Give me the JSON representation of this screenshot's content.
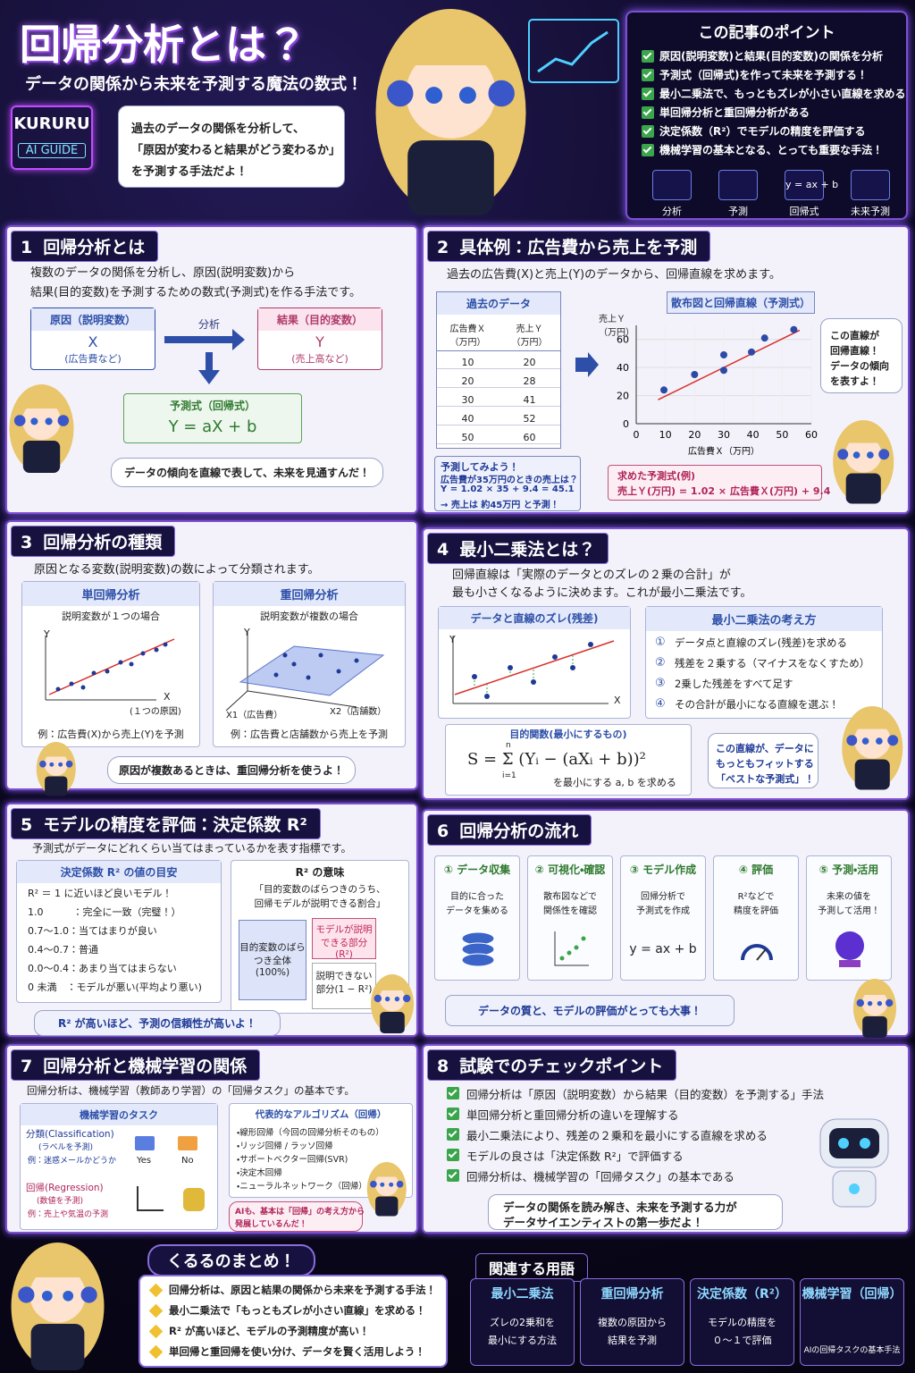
{
  "header": {
    "title": "回帰分析とは？",
    "subtitle": "データの関係から未来を予測する魔法の数式！",
    "badge": [
      "KURURU",
      "AI GUIDE"
    ],
    "speech": [
      "過去のデータの関係を分析して、",
      "「原因が変わると結果がどう変わるか」",
      "を予測する手法だよ！"
    ]
  },
  "points": {
    "title": "この記事のポイント",
    "items": [
      "原因(説明変数)と結果(目的変数)の関係を分析",
      "予測式（回帰式)を作って未来を予測する！",
      "最小二乗法で、もっともズレが小さい直線を求める",
      "単回帰分析と重回帰分析がある",
      "決定係数（R²）でモデルの精度を評価する",
      "機械学習の基本となる、とっても重要な手法！"
    ],
    "icons": [
      "分析",
      "予測",
      "回帰式",
      "未来予測"
    ],
    "formula": "y = ax + b"
  },
  "s1": {
    "num": "1",
    "title": "回帰分析とは",
    "text": [
      "複数のデータの関係を分析し、原因(説明変数)から",
      "結果(目的変数)を予測するための数式(予測式)を作る手法です。"
    ],
    "cause": {
      "title": "原因（説明変数）",
      "var": "X",
      "note": "(広告費など)"
    },
    "arrow": "分析",
    "effect": {
      "title": "結果（目的変数）",
      "var": "Y",
      "note": "(売上高など)"
    },
    "formula": {
      "title": "予測式（回帰式）",
      "text": "Y = aX + b"
    },
    "bubble": "データの傾向を直線で表して、未来を見通すんだ！"
  },
  "s2": {
    "num": "2",
    "title": "具体例：広告費から売上を予測",
    "text": "過去の広告費(X)と売上(Y)のデータから、回帰直線を求めます。",
    "table": {
      "title": "過去のデータ",
      "headers": [
        "広告費Ｘ（万円）",
        "売上Ｙ（万円）"
      ],
      "rows": [
        [
          10,
          20
        ],
        [
          20,
          28
        ],
        [
          30,
          41
        ],
        [
          40,
          52
        ],
        [
          50,
          60
        ]
      ]
    },
    "chart": {
      "type": "scatter",
      "title": "散布図と回帰直線（予測式）",
      "ylabel": "売上Ｙ（万円）",
      "xlabel": "広告費Ｘ（万円）",
      "x": [
        9.5,
        20,
        30,
        30,
        39.5,
        44,
        54
      ],
      "y": [
        24,
        35,
        38,
        49,
        51,
        61,
        67
      ],
      "color": "#2b4aa6",
      "line_color": "#d9302b",
      "fit": {
        "slope": 1.02,
        "intercept": 9.4
      },
      "xlim": [
        0,
        60
      ],
      "xticks": [
        0,
        10,
        20,
        30,
        40,
        50,
        60
      ],
      "ylim": [
        0,
        70
      ],
      "yticks": [
        0,
        20,
        40,
        60
      ],
      "grid": true
    },
    "bubble": [
      "この直線が",
      "回帰直線！",
      "データの傾向",
      "を表すよ！"
    ],
    "predict": [
      "予測してみよう！",
      "広告費が35万円のときの売上は？",
      "Y = 1.02 × 35 + 9.4 = 45.1",
      "→ 売上は 約45万円 と予測！"
    ],
    "result": [
      "求めた予測式(例)",
      "売上Ｙ(万円) = 1.02 × 広告費Ｘ(万円) + 9.4"
    ]
  },
  "s3": {
    "num": "3",
    "title": "回帰分析の種類",
    "text": "原因となる変数(説明変数)の数によって分類されます。",
    "single": {
      "title": "単回帰分析",
      "sub": "説明変数が１つの場合",
      "y": "Y",
      "x": "X",
      "xnote": "(１つの原因)",
      "example": "例：広告費(X)から売上(Y)を予測"
    },
    "multi": {
      "title": "重回帰分析",
      "sub": "説明変数が複数の場合",
      "y": "Y",
      "x1": "X1（広告費）",
      "x2": "X2（店舗数）",
      "example": "例：広告費と店舗数から売上を予測"
    },
    "bubble": "原因が複数あるときは、重回帰分析を使うよ！"
  },
  "s4": {
    "num": "4",
    "title": "最小二乗法とは？",
    "text": [
      "回帰直線は「実際のデータとのズレの２乗の合計」が",
      "最も小さくなるように決めます。これが最小二乗法です。"
    ],
    "chart_title": "データと直線のズレ(残差)",
    "y": "Y",
    "x": "X",
    "idea": {
      "title": "最小二乗法の考え方",
      "markers": [
        "①",
        "②",
        "③",
        "④"
      ],
      "steps": [
        "データ点と直線のズレ(残差)を求める",
        "残差を２乗する（マイナスをなくすため）",
        "2乗した残差をすべて足す",
        "その合計が最小になる直線を選ぶ！"
      ]
    },
    "objective": {
      "title": "目的関数(最小にするもの)",
      "formula": "S = Σ (Yᵢ − (aXᵢ + b))²",
      "top": "n",
      "bottom": "i=1",
      "note": "を最小にする a, b を求める"
    },
    "bubble": [
      "この直線が、データに",
      "もっともフィットする",
      "「ベストな予測式」！"
    ]
  },
  "s5": {
    "num": "5",
    "title": "モデルの精度を評価：決定係数 R²",
    "text": "予測式がデータにどれくらい当てはまっているかを表す指標です。",
    "guide": {
      "title": "決定係数 R² の値の目安",
      "rows": [
        "R² ＝ 1 に近いほど良いモデル！",
        "1.0　　　：完全に一致（完璧！）",
        "0.7〜1.0：当てはまりが良い",
        "0.4〜0.7：普通",
        "0.0〜0.4：あまり当てはまらない",
        "0 未満　：モデルが悪い(平均より悪い)"
      ]
    },
    "meaning": {
      "title": "R² の意味",
      "lines": [
        "「目的変数のばらつきのうち、",
        "回帰モデルが説明できる割合」"
      ],
      "total": "目的変数のばらつき全体(100%)",
      "explained": "モデルが説明できる部分(R²)",
      "unexplained": "説明できない部分(1 − R²)"
    },
    "bubble": "R² が高いほど、予測の信頼性が高いよ！"
  },
  "s6": {
    "num": "6",
    "title": "回帰分析の流れ",
    "steps": [
      {
        "title": "① データ収集",
        "lines": [
          "目的に合った",
          "データを集める"
        ]
      },
      {
        "title": "② 可視化・確認",
        "lines": [
          "散布図などで",
          "関係性を確認"
        ]
      },
      {
        "title": "③ モデル作成",
        "lines": [
          "回帰分析で",
          "予測式を作成"
        ],
        "formula": "y = ax + b"
      },
      {
        "title": "④ 評価",
        "lines": [
          "R²などで",
          "精度を評価"
        ]
      },
      {
        "title": "⑤ 予測・活用",
        "lines": [
          "未来の値を",
          "予測して活用！"
        ]
      }
    ],
    "banner": "データの質と、モデルの評価がとっても大事！"
  },
  "s7": {
    "num": "7",
    "title": "回帰分析と機械学習の関係",
    "text": "回帰分析は、機械学習（教師あり学習）の「回帰タスク」の基本です。",
    "tasks": {
      "title": "機械学習のタスク",
      "cls": [
        "分類(Classification)",
        "(ラベルを予測)",
        "例：迷惑メールかどうか"
      ],
      "yes": "Yes",
      "no": "No",
      "reg": [
        "回帰(Regression)",
        "(数値を予測)",
        "例：売上や気温の予測"
      ]
    },
    "algos": {
      "title": "代表的なアルゴリズム（回帰）",
      "items": [
        "・線形回帰（今回の回帰分析そのもの）",
        "・リッジ回帰 / ラッソ回帰",
        "・サポートベクター回帰(SVR)",
        "・決定木回帰",
        "・ニューラルネットワーク（回帰）など"
      ]
    },
    "bubble": [
      "AIも、基本は「回帰」の考え方から",
      "発展しているんだ！"
    ]
  },
  "s8": {
    "num": "8",
    "title": "試験でのチェックポイント",
    "items": [
      "回帰分析は「原因（説明変数）から結果（目的変数）を予測する」手法",
      "単回帰分析と重回帰分析の違いを理解する",
      "最小二乗法により、残差の２乗和を最小にする直線を求める",
      "モデルの良さは「決定係数 R²」で評価する",
      "回帰分析は、機械学習の「回帰タスク」の基本である"
    ],
    "bubble": [
      "データの関係を読み解き、未来を予測する力が",
      "データサイエンティストの第一歩だよ！"
    ]
  },
  "summary": {
    "title": "くるるのまとめ！",
    "items": [
      "回帰分析は、原因と結果の関係から未来を予測する手法！",
      "最小二乗法で「もっともズレが小さい直線」を求める！",
      "R² が高いほど、モデルの予測精度が高い！",
      "単回帰と重回帰を使い分け、データを賢く活用しよう！"
    ]
  },
  "related": {
    "title": "関連する用語",
    "terms": [
      {
        "name": "最小二乗法",
        "lines": [
          "ズレの2乗和を",
          "最小にする方法"
        ]
      },
      {
        "name": "重回帰分析",
        "lines": [
          "複数の原因から",
          "結果を予測"
        ]
      },
      {
        "name": "決定係数（R²）",
        "lines": [
          "モデルの精度を",
          "０〜１で評価"
        ]
      },
      {
        "name": "機械学習（回帰）",
        "lines": [
          "AIの回帰タスクの基本手法"
        ]
      }
    ]
  }
}
